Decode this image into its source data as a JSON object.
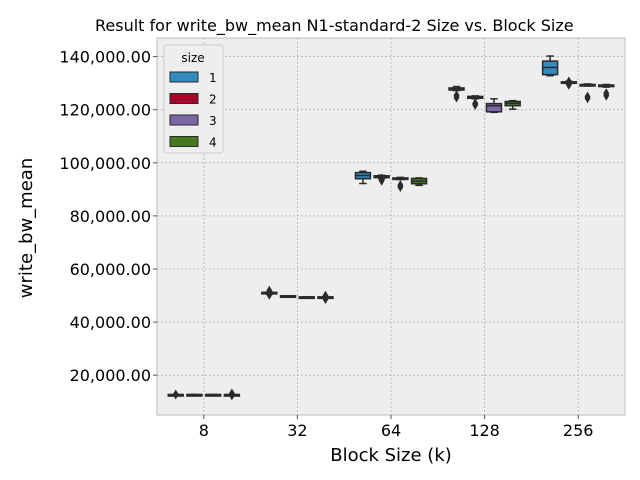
{
  "chart_data": {
    "type": "box",
    "title": "Result for write_bw_mean N1-standard-2 Size vs. Block Size",
    "xlabel": "Block Size (k)",
    "ylabel": "write_bw_mean",
    "categories": [
      "8",
      "32",
      "64",
      "128",
      "256"
    ],
    "ylim": [
      5000,
      147000
    ],
    "yticks": [
      20000,
      40000,
      60000,
      80000,
      100000,
      120000,
      140000
    ],
    "ytick_labels": [
      "20,000.00",
      "40,000.00",
      "60,000.00",
      "80,000.00",
      "100,000.00",
      "120,000.00",
      "140,000.00"
    ],
    "grid": true,
    "legend": {
      "title": "size",
      "placement": "top-left",
      "entries": [
        "1",
        "2",
        "3",
        "4"
      ]
    },
    "series": [
      {
        "name": "1",
        "color": "#348ABD",
        "boxes": [
          {
            "category": "8",
            "whislo": 12700,
            "q1": 12700,
            "med": 12700,
            "q3": 12700,
            "whishi": 12700,
            "fliers": [
              12700
            ]
          },
          {
            "category": "32",
            "whislo": 50500,
            "q1": 50800,
            "med": 51000,
            "q3": 51200,
            "whishi": 51300,
            "fliers": [
              50300,
              51800
            ]
          },
          {
            "category": "64",
            "whislo": 92200,
            "q1": 94000,
            "med": 95200,
            "q3": 96300,
            "whishi": 96800,
            "fliers": []
          },
          {
            "category": "128",
            "whislo": 127200,
            "q1": 127400,
            "med": 127800,
            "q3": 128200,
            "whishi": 128700,
            "fliers": [
              125400,
              124600
            ]
          },
          {
            "category": "256",
            "whislo": 132800,
            "q1": 133200,
            "med": 135900,
            "q3": 138300,
            "whishi": 140200,
            "fliers": []
          }
        ]
      },
      {
        "name": "2",
        "color": "#A60628",
        "boxes": [
          {
            "category": "8",
            "whislo": 12700,
            "q1": 12700,
            "med": 12700,
            "q3": 12700,
            "whishi": 12700,
            "fliers": []
          },
          {
            "category": "32",
            "whislo": 49700,
            "q1": 49800,
            "med": 49800,
            "q3": 49900,
            "whishi": 49900,
            "fliers": []
          },
          {
            "category": "64",
            "whislo": 94000,
            "q1": 94400,
            "med": 94700,
            "q3": 95100,
            "whishi": 95300,
            "fliers": [
              93300,
              94100
            ]
          },
          {
            "category": "128",
            "whislo": 124100,
            "q1": 124300,
            "med": 124600,
            "q3": 125000,
            "whishi": 125200,
            "fliers": [
              122400,
              121800
            ]
          },
          {
            "category": "256",
            "whislo": 129900,
            "q1": 130100,
            "med": 130300,
            "q3": 130500,
            "whishi": 130700,
            "fliers": [
              130600,
              129400
            ]
          }
        ]
      },
      {
        "name": "3",
        "color": "#7A68A6",
        "boxes": [
          {
            "category": "8",
            "whislo": 12700,
            "q1": 12700,
            "med": 12700,
            "q3": 12700,
            "whishi": 12700,
            "fliers": []
          },
          {
            "category": "32",
            "whislo": 49200,
            "q1": 49300,
            "med": 49400,
            "q3": 49500,
            "whishi": 49500,
            "fliers": []
          },
          {
            "category": "64",
            "whislo": 93700,
            "q1": 93900,
            "med": 94100,
            "q3": 94300,
            "whishi": 94500,
            "fliers": [
              91600,
              90900
            ]
          },
          {
            "category": "128",
            "whislo": 119000,
            "q1": 119200,
            "med": 121500,
            "q3": 122300,
            "whishi": 124100,
            "fliers": []
          },
          {
            "category": "256",
            "whislo": 128900,
            "q1": 129100,
            "med": 129300,
            "q3": 129500,
            "whishi": 129700,
            "fliers": [
              124900,
              124300
            ]
          }
        ]
      },
      {
        "name": "4",
        "color": "#467821",
        "boxes": [
          {
            "category": "8",
            "whislo": 12700,
            "q1": 12700,
            "med": 12700,
            "q3": 12700,
            "whishi": 12700,
            "fliers": [
              12400,
              13100
            ]
          },
          {
            "category": "32",
            "whislo": 49200,
            "q1": 49300,
            "med": 49400,
            "q3": 49500,
            "whishi": 49500,
            "fliers": [
              48700,
              49900
            ]
          },
          {
            "category": "64",
            "whislo": 91500,
            "q1": 92100,
            "med": 93100,
            "q3": 94100,
            "whishi": 94300,
            "fliers": []
          },
          {
            "category": "128",
            "whislo": 120200,
            "q1": 121500,
            "med": 122400,
            "q3": 123100,
            "whishi": 123400,
            "fliers": []
          },
          {
            "category": "256",
            "whislo": 128500,
            "q1": 128700,
            "med": 129000,
            "q3": 129300,
            "whishi": 129500,
            "fliers": [
              125300,
              126200
            ]
          }
        ]
      }
    ]
  }
}
